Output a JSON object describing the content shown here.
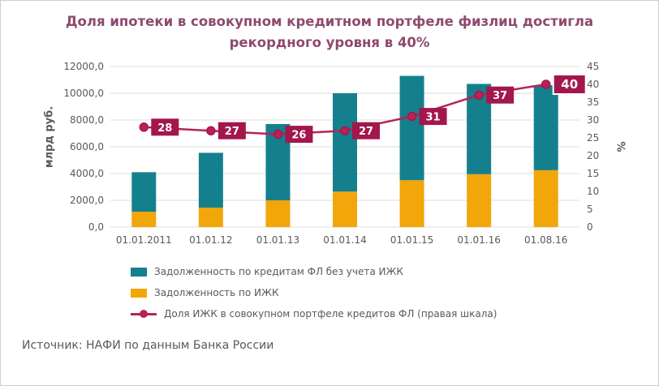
{
  "title": "Доля ипотеки в совокупном кредитном портфеле физлиц достигла рекордного уровня в 40%",
  "source": "Источник: НАФИ по данным Банка России",
  "colors": {
    "title": "#8e4a6e",
    "text": "#595959",
    "grid": "#dcdcdc",
    "teal_bar": "#15808d",
    "orange_bar": "#f1a60a",
    "line": "#b72356",
    "line_label_bg": "#a3174d"
  },
  "chart_data": {
    "type": "bar",
    "subtype": "stacked-bars-with-line-overlay",
    "title": "Доля ипотеки в совокупном кредитном портфеле физлиц достигла рекордного уровня в 40%",
    "categories": [
      "01.01.2011",
      "01.01.12",
      "01.01.13",
      "01.01.14",
      "01.01.15",
      "01.01.16",
      "01.08.16"
    ],
    "series": [
      {
        "name": "Задолженность по кредитам ФЛ без учета ИЖК",
        "type": "bar",
        "stack_position": "top",
        "color": "#15808d",
        "values": [
          2950,
          4100,
          5700,
          7350,
          7800,
          6750,
          6350
        ]
      },
      {
        "name": "Задолженность по ИЖК",
        "type": "bar",
        "stack_position": "bottom",
        "color": "#f1a60a",
        "values": [
          1150,
          1450,
          2000,
          2650,
          3500,
          3950,
          4250
        ]
      },
      {
        "name": "Доля ИЖК в совокупном портфеле кредитов ФЛ (правая шкала)",
        "type": "line",
        "axis": "right",
        "color": "#b72356",
        "label_bg": "#a3174d",
        "values": [
          28,
          27,
          26,
          27,
          31,
          37,
          40
        ]
      }
    ],
    "left_axis": {
      "label": "млрд руб.",
      "min": 0,
      "max": 12000,
      "tick_step": 2000,
      "ticks": [
        "0,0",
        "2000,0",
        "4000,0",
        "6000,0",
        "8000,0",
        "10000,0",
        "12000,0"
      ]
    },
    "right_axis": {
      "label": "%",
      "min": 0,
      "max": 45,
      "tick_step": 5,
      "ticks": [
        "0",
        "5",
        "10",
        "15",
        "20",
        "25",
        "30",
        "35",
        "40",
        "45"
      ]
    },
    "grid": true,
    "legend_position": "bottom-left"
  }
}
